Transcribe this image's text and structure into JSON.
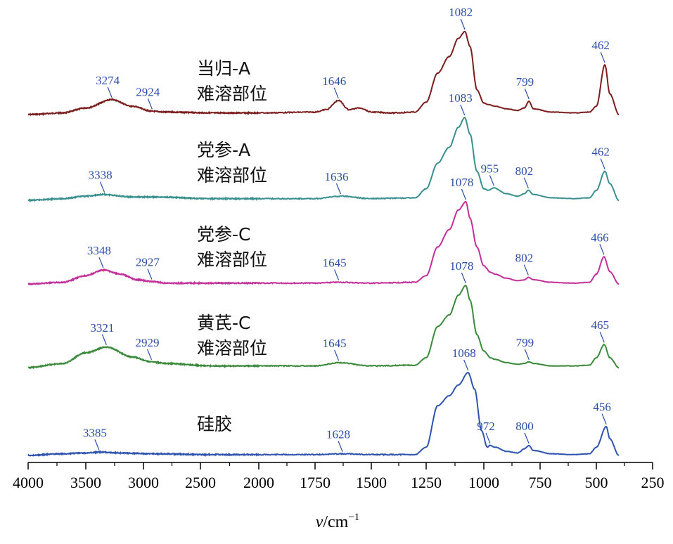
{
  "chart_data": {
    "type": "line",
    "title": "",
    "xlabel": {
      "symbol": "v",
      "unit": "/cm",
      "exponent": "−1"
    },
    "ylabel": "",
    "xlim": [
      4000,
      250
    ],
    "x_reversed": true,
    "x_ticks": [
      4000,
      3500,
      3000,
      2500,
      2000,
      1750,
      1500,
      1250,
      1000,
      750,
      500,
      250
    ],
    "x_tick_labels": [
      "4000",
      "3500",
      "3000",
      "2500",
      "2000",
      "1750",
      "1500",
      "1250",
      "1000",
      "750",
      "500",
      "250"
    ],
    "x_axis_note": "axis scale is compressed above 2000 cm⁻¹ (500 cm⁻¹ per major tick) and expanded below 2000 cm⁻¹ (250 cm⁻¹ per major tick)",
    "grid": false,
    "legend": "inline labels next to each trace",
    "y_units": "relative absorbance, stacked offset",
    "series": [
      {
        "name": "当归-A 难溶部位",
        "label_lines": [
          "当归-A",
          "难溶部位"
        ],
        "color": "#7b1e1e",
        "points": [
          [
            4000,
            0.0
          ],
          [
            3700,
            0.02
          ],
          [
            3500,
            0.08
          ],
          [
            3274,
            0.18
          ],
          [
            3100,
            0.1
          ],
          [
            2924,
            0.04
          ],
          [
            2800,
            0.03
          ],
          [
            2400,
            0.02
          ],
          [
            2000,
            0.02
          ],
          [
            1750,
            0.03
          ],
          [
            1700,
            0.06
          ],
          [
            1646,
            0.17
          ],
          [
            1600,
            0.06
          ],
          [
            1550,
            0.08
          ],
          [
            1500,
            0.03
          ],
          [
            1400,
            0.02
          ],
          [
            1300,
            0.03
          ],
          [
            1250,
            0.15
          ],
          [
            1200,
            0.5
          ],
          [
            1150,
            0.7
          ],
          [
            1110,
            0.92
          ],
          [
            1082,
            1.0
          ],
          [
            1060,
            0.82
          ],
          [
            1030,
            0.3
          ],
          [
            1000,
            0.14
          ],
          [
            980,
            0.12
          ],
          [
            950,
            0.1
          ],
          [
            900,
            0.07
          ],
          [
            850,
            0.05
          ],
          [
            820,
            0.08
          ],
          [
            799,
            0.16
          ],
          [
            780,
            0.07
          ],
          [
            700,
            0.03
          ],
          [
            600,
            0.02
          ],
          [
            530,
            0.03
          ],
          [
            500,
            0.1
          ],
          [
            462,
            0.6
          ],
          [
            440,
            0.25
          ],
          [
            400,
            0.0
          ]
        ],
        "peaks": [
          3274,
          2924,
          1646,
          1082,
          799,
          462
        ]
      },
      {
        "name": "党参-A 难溶部位",
        "label_lines": [
          "党参-A",
          "难溶部位"
        ],
        "color": "#3a8f8f",
        "points": [
          [
            4000,
            0.0
          ],
          [
            3700,
            0.02
          ],
          [
            3500,
            0.05
          ],
          [
            3338,
            0.07
          ],
          [
            3100,
            0.04
          ],
          [
            2900,
            0.04
          ],
          [
            2400,
            0.02
          ],
          [
            2000,
            0.02
          ],
          [
            1750,
            0.02
          ],
          [
            1636,
            0.05
          ],
          [
            1500,
            0.02
          ],
          [
            1300,
            0.03
          ],
          [
            1250,
            0.14
          ],
          [
            1200,
            0.45
          ],
          [
            1150,
            0.64
          ],
          [
            1110,
            0.88
          ],
          [
            1083,
            1.0
          ],
          [
            1060,
            0.8
          ],
          [
            1030,
            0.35
          ],
          [
            1000,
            0.14
          ],
          [
            980,
            0.12
          ],
          [
            955,
            0.15
          ],
          [
            900,
            0.08
          ],
          [
            850,
            0.05
          ],
          [
            820,
            0.08
          ],
          [
            802,
            0.12
          ],
          [
            780,
            0.07
          ],
          [
            700,
            0.03
          ],
          [
            600,
            0.02
          ],
          [
            530,
            0.03
          ],
          [
            500,
            0.12
          ],
          [
            462,
            0.35
          ],
          [
            440,
            0.2
          ],
          [
            400,
            0.0
          ]
        ],
        "peaks": [
          3338,
          1636,
          1083,
          955,
          802,
          462
        ]
      },
      {
        "name": "党参-C 难溶部位",
        "label_lines": [
          "党参-C",
          "难溶部位"
        ],
        "color": "#c2309a",
        "points": [
          [
            4000,
            0.0
          ],
          [
            3700,
            0.02
          ],
          [
            3500,
            0.1
          ],
          [
            3348,
            0.17
          ],
          [
            3200,
            0.12
          ],
          [
            3050,
            0.05
          ],
          [
            2927,
            0.03
          ],
          [
            2800,
            0.01
          ],
          [
            2400,
            0.01
          ],
          [
            2000,
            0.01
          ],
          [
            1750,
            0.01
          ],
          [
            1645,
            0.02
          ],
          [
            1500,
            0.01
          ],
          [
            1300,
            0.02
          ],
          [
            1250,
            0.1
          ],
          [
            1200,
            0.45
          ],
          [
            1150,
            0.66
          ],
          [
            1110,
            0.9
          ],
          [
            1078,
            1.0
          ],
          [
            1060,
            0.8
          ],
          [
            1030,
            0.45
          ],
          [
            1000,
            0.22
          ],
          [
            970,
            0.14
          ],
          [
            950,
            0.12
          ],
          [
            900,
            0.07
          ],
          [
            850,
            0.04
          ],
          [
            820,
            0.05
          ],
          [
            802,
            0.08
          ],
          [
            780,
            0.05
          ],
          [
            700,
            0.02
          ],
          [
            600,
            0.01
          ],
          [
            530,
            0.02
          ],
          [
            500,
            0.12
          ],
          [
            466,
            0.33
          ],
          [
            440,
            0.15
          ],
          [
            400,
            0.0
          ]
        ],
        "peaks": [
          3348,
          2927,
          1645,
          1078,
          802,
          466
        ]
      },
      {
        "name": "黄芪-C 难溶部位",
        "label_lines": [
          "黄芪-C",
          "难溶部位"
        ],
        "color": "#3b8a3b",
        "points": [
          [
            4000,
            0.0
          ],
          [
            3700,
            0.05
          ],
          [
            3500,
            0.18
          ],
          [
            3321,
            0.25
          ],
          [
            3100,
            0.13
          ],
          [
            2929,
            0.07
          ],
          [
            2800,
            0.05
          ],
          [
            2400,
            0.02
          ],
          [
            2000,
            0.02
          ],
          [
            1750,
            0.02
          ],
          [
            1645,
            0.06
          ],
          [
            1500,
            0.02
          ],
          [
            1300,
            0.03
          ],
          [
            1250,
            0.12
          ],
          [
            1200,
            0.5
          ],
          [
            1150,
            0.64
          ],
          [
            1110,
            0.88
          ],
          [
            1078,
            1.0
          ],
          [
            1060,
            0.82
          ],
          [
            1030,
            0.4
          ],
          [
            1000,
            0.2
          ],
          [
            970,
            0.12
          ],
          [
            950,
            0.1
          ],
          [
            900,
            0.06
          ],
          [
            850,
            0.04
          ],
          [
            820,
            0.05
          ],
          [
            799,
            0.07
          ],
          [
            780,
            0.05
          ],
          [
            700,
            0.02
          ],
          [
            600,
            0.02
          ],
          [
            530,
            0.03
          ],
          [
            500,
            0.12
          ],
          [
            465,
            0.28
          ],
          [
            440,
            0.12
          ],
          [
            400,
            0.0
          ]
        ],
        "peaks": [
          3321,
          2929,
          1645,
          1078,
          799,
          465
        ]
      },
      {
        "name": "硅胶",
        "label_lines": [
          "硅胶"
        ],
        "color": "#2f54b0",
        "points": [
          [
            4000,
            0.0
          ],
          [
            3700,
            0.02
          ],
          [
            3500,
            0.03
          ],
          [
            3385,
            0.04
          ],
          [
            3200,
            0.03
          ],
          [
            2900,
            0.02
          ],
          [
            2400,
            0.01
          ],
          [
            2000,
            0.01
          ],
          [
            1750,
            0.01
          ],
          [
            1628,
            0.02
          ],
          [
            1500,
            0.01
          ],
          [
            1300,
            0.01
          ],
          [
            1250,
            0.1
          ],
          [
            1200,
            0.6
          ],
          [
            1150,
            0.72
          ],
          [
            1110,
            0.85
          ],
          [
            1068,
            1.0
          ],
          [
            1040,
            0.8
          ],
          [
            1010,
            0.3
          ],
          [
            985,
            0.1
          ],
          [
            972,
            0.12
          ],
          [
            950,
            0.1
          ],
          [
            900,
            0.05
          ],
          [
            850,
            0.03
          ],
          [
            820,
            0.08
          ],
          [
            800,
            0.12
          ],
          [
            780,
            0.06
          ],
          [
            700,
            0.02
          ],
          [
            600,
            0.01
          ],
          [
            530,
            0.02
          ],
          [
            500,
            0.1
          ],
          [
            456,
            0.35
          ],
          [
            440,
            0.2
          ],
          [
            400,
            0.0
          ]
        ],
        "peaks": [
          3385,
          1628,
          1068,
          972,
          800,
          456
        ]
      }
    ]
  }
}
